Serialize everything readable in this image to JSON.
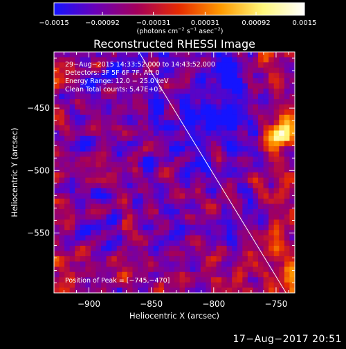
{
  "chart_data": {
    "type": "heatmap",
    "title": "Reconstructed RHESSI Image",
    "xlabel": "Heliocentric X (arcsec)",
    "ylabel": "Heliocentric Y (arcsec)",
    "xlim": [
      -928,
      -735
    ],
    "ylim": [
      -598,
      -405
    ],
    "x_ticks": [
      -900,
      -850,
      -800,
      -750
    ],
    "y_ticks": [
      -450,
      -500,
      -550
    ],
    "x_tick_labels": [
      "−900",
      "−850",
      "−800",
      "−750"
    ],
    "y_tick_labels": [
      "−450",
      "−500",
      "−550"
    ],
    "colorbar": {
      "range": [
        -0.0015,
        0.0015
      ],
      "ticks": [
        -0.0015,
        -0.00092,
        -0.00031,
        0.00031,
        0.00092,
        0.0015
      ],
      "tick_labels": [
        "−0.0015",
        "−0.00092",
        "−0.00031",
        "0.00031",
        "0.00092",
        "0.0015"
      ],
      "unit_parts": [
        "(photons cm",
        "−2",
        " s",
        "−1",
        " asec",
        "−2",
        ")"
      ],
      "colors": [
        "#1414ff",
        "#6a00b8",
        "#a4005a",
        "#e62b00",
        "#ff9a00",
        "#fff77a",
        "#ffffff"
      ]
    },
    "annotations": [
      "29−Aug−2015 14:33:52.000 to 14:43:52.000",
      "Detectors: 3F 5F 6F 7F, Att 0",
      "Energy Range: 12.0 − 25.0 keV",
      "Clean    Total counts: 5.47E+03"
    ],
    "peak_label": "Position of Peak = [−745,−470]",
    "peak": [
      -745,
      -470
    ],
    "limb_line": [
      [
        -860,
        -405
      ],
      [
        -742,
        -598
      ]
    ],
    "grid": false
  },
  "footer": {
    "timestamp": "17−Aug−2017 20:51"
  }
}
